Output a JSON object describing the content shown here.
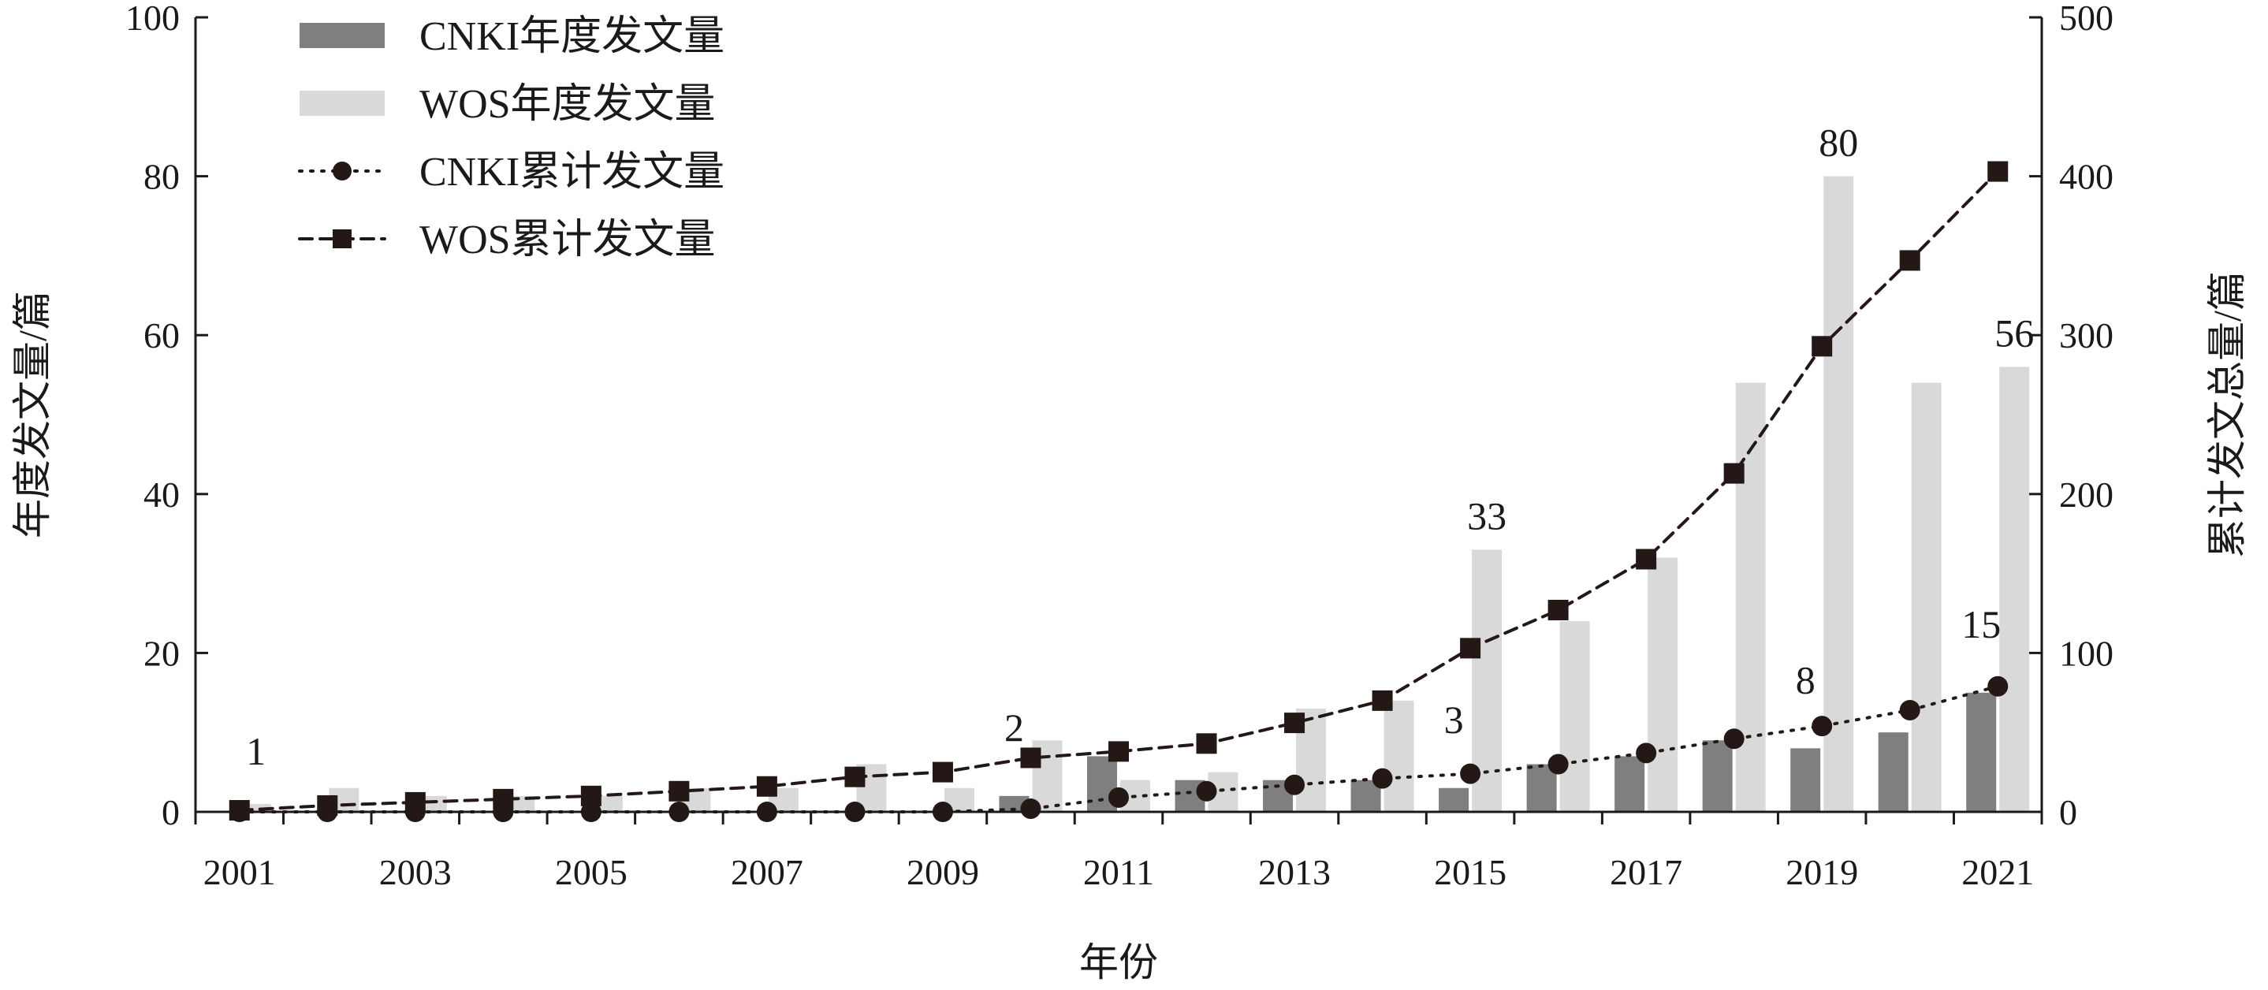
{
  "chart_data": {
    "type": "bar",
    "categories": [
      "2001",
      "2002",
      "2003",
      "2004",
      "2005",
      "2006",
      "2007",
      "2008",
      "2009",
      "2010",
      "2011",
      "2012",
      "2013",
      "2014",
      "2015",
      "2016",
      "2017",
      "2018",
      "2019",
      "2020",
      "2021"
    ],
    "x_tick_labels": [
      "2001",
      "2003",
      "2005",
      "2007",
      "2009",
      "2011",
      "2013",
      "2015",
      "2017",
      "2019",
      "2021"
    ],
    "xlabel": "年份",
    "ylabel": "年度发文量/篇",
    "y2label": "累计发文总量/篇",
    "ylim": [
      0,
      100
    ],
    "y2lim": [
      0,
      500
    ],
    "y_ticks": [
      0,
      20,
      40,
      60,
      80,
      100
    ],
    "y2_ticks": [
      0,
      100,
      200,
      300,
      400,
      500
    ],
    "grid": false,
    "legend_position": "top-left",
    "series": [
      {
        "name": "CNKI年度发文量",
        "type": "bar",
        "axis": "left",
        "color": "#7f7f7f",
        "values": [
          0,
          0,
          0,
          0,
          0,
          0,
          0,
          0,
          0,
          2,
          7,
          4,
          4,
          4,
          3,
          6,
          7,
          9,
          8,
          10,
          15
        ]
      },
      {
        "name": "WOS年度发文量",
        "type": "bar",
        "axis": "left",
        "color": "#d9d9d9",
        "values": [
          1,
          3,
          2,
          2,
          2,
          3,
          3,
          6,
          3,
          9,
          4,
          5,
          13,
          14,
          33,
          24,
          32,
          54,
          80,
          54,
          56
        ]
      },
      {
        "name": "CNKI累计发文量",
        "type": "line",
        "style": "dotted",
        "marker": "circle",
        "axis": "right",
        "color": "#231815",
        "values": [
          0,
          0,
          0,
          0,
          0,
          0,
          0,
          0,
          0,
          2,
          9,
          13,
          17,
          21,
          24,
          30,
          37,
          46,
          54,
          64,
          79
        ]
      },
      {
        "name": "WOS累计发文量",
        "type": "line",
        "style": "dashed",
        "marker": "square",
        "axis": "right",
        "color": "#231815",
        "values": [
          1,
          4,
          6,
          8,
          10,
          13,
          16,
          22,
          25,
          34,
          38,
          43,
          56,
          70,
          103,
          127,
          159,
          213,
          293,
          347,
          403
        ]
      }
    ],
    "annotations": [
      {
        "text": "1",
        "category": "2001",
        "series": "WOS年度发文量",
        "value": 1
      },
      {
        "text": "2",
        "category": "2010",
        "series": "CNKI年度发文量",
        "value": 2
      },
      {
        "text": "3",
        "category": "2015",
        "series": "CNKI年度发文量",
        "value": 3
      },
      {
        "text": "33",
        "category": "2015",
        "series": "WOS年度发文量",
        "value": 33
      },
      {
        "text": "8",
        "category": "2019",
        "series": "CNKI年度发文量",
        "value": 8
      },
      {
        "text": "80",
        "category": "2019",
        "series": "WOS年度发文量",
        "value": 80
      },
      {
        "text": "15",
        "category": "2021",
        "series": "CNKI年度发文量",
        "value": 15
      },
      {
        "text": "56",
        "category": "2021",
        "series": "WOS年度发文量",
        "value": 56
      }
    ]
  }
}
